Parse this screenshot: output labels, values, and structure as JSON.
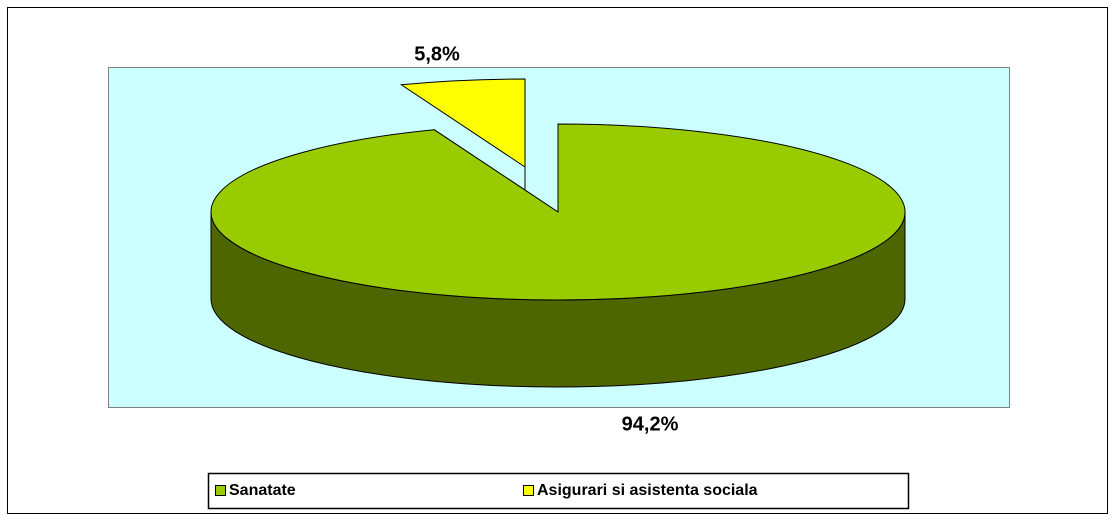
{
  "chart_data": {
    "type": "pie",
    "categories": [
      "Sanatate",
      "Asigurari si asistenta sociala"
    ],
    "values": [
      94.2,
      5.8
    ],
    "value_labels": [
      "94,2%",
      "5,8%"
    ],
    "colors": [
      "#99cc00",
      "#ffff00"
    ],
    "side_colors": [
      "#4d6600",
      "#808000"
    ],
    "legend": "bottom"
  }
}
